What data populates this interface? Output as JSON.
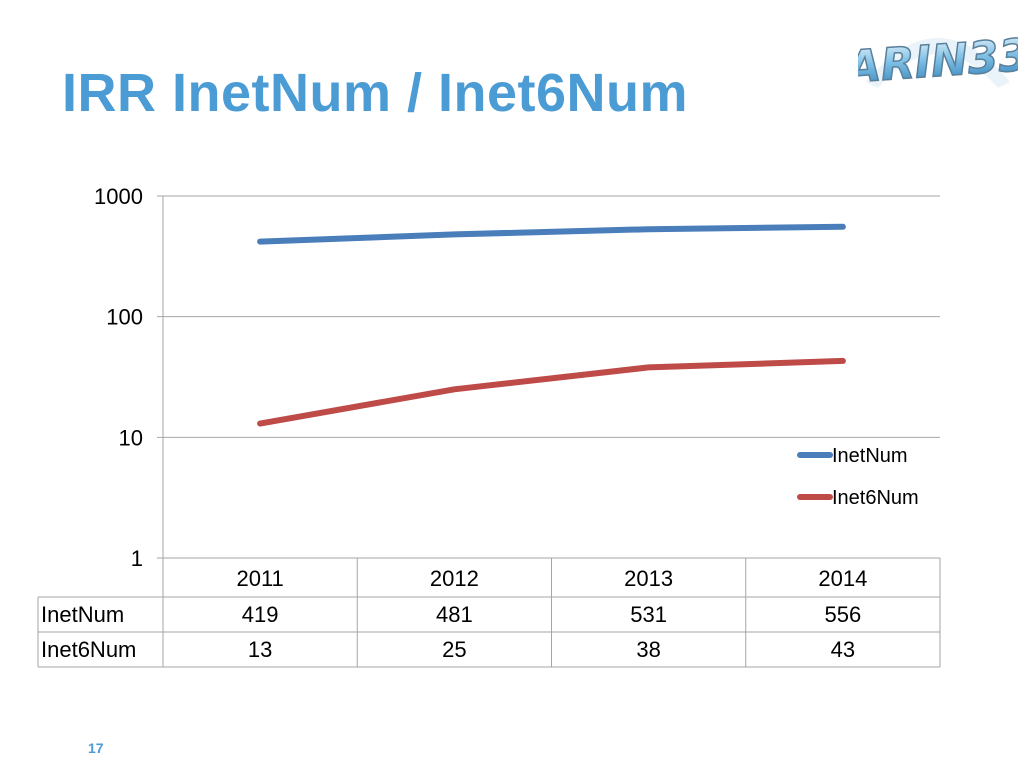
{
  "slide": {
    "title": "IRR InetNum / Inet6Num",
    "page_number": "17",
    "logo_text": "ARIN33"
  },
  "colors": {
    "title": "#4b9bd4",
    "inetnum": "#4a7ebb",
    "inet6num": "#be4b48",
    "grid": "#a6a6a6"
  },
  "chart_data": {
    "type": "line",
    "yscale": "log",
    "ylim": [
      1,
      1000
    ],
    "yticks": [
      "1",
      "10",
      "100",
      "1000"
    ],
    "categories": [
      "2011",
      "2012",
      "2013",
      "2014"
    ],
    "series": [
      {
        "name": "InetNum",
        "values": [
          419,
          481,
          531,
          556
        ],
        "color": "#4a7ebb"
      },
      {
        "name": "Inet6Num",
        "values": [
          13,
          25,
          38,
          43
        ],
        "color": "#be4b48"
      }
    ],
    "legend_position": "right",
    "data_table": true
  }
}
